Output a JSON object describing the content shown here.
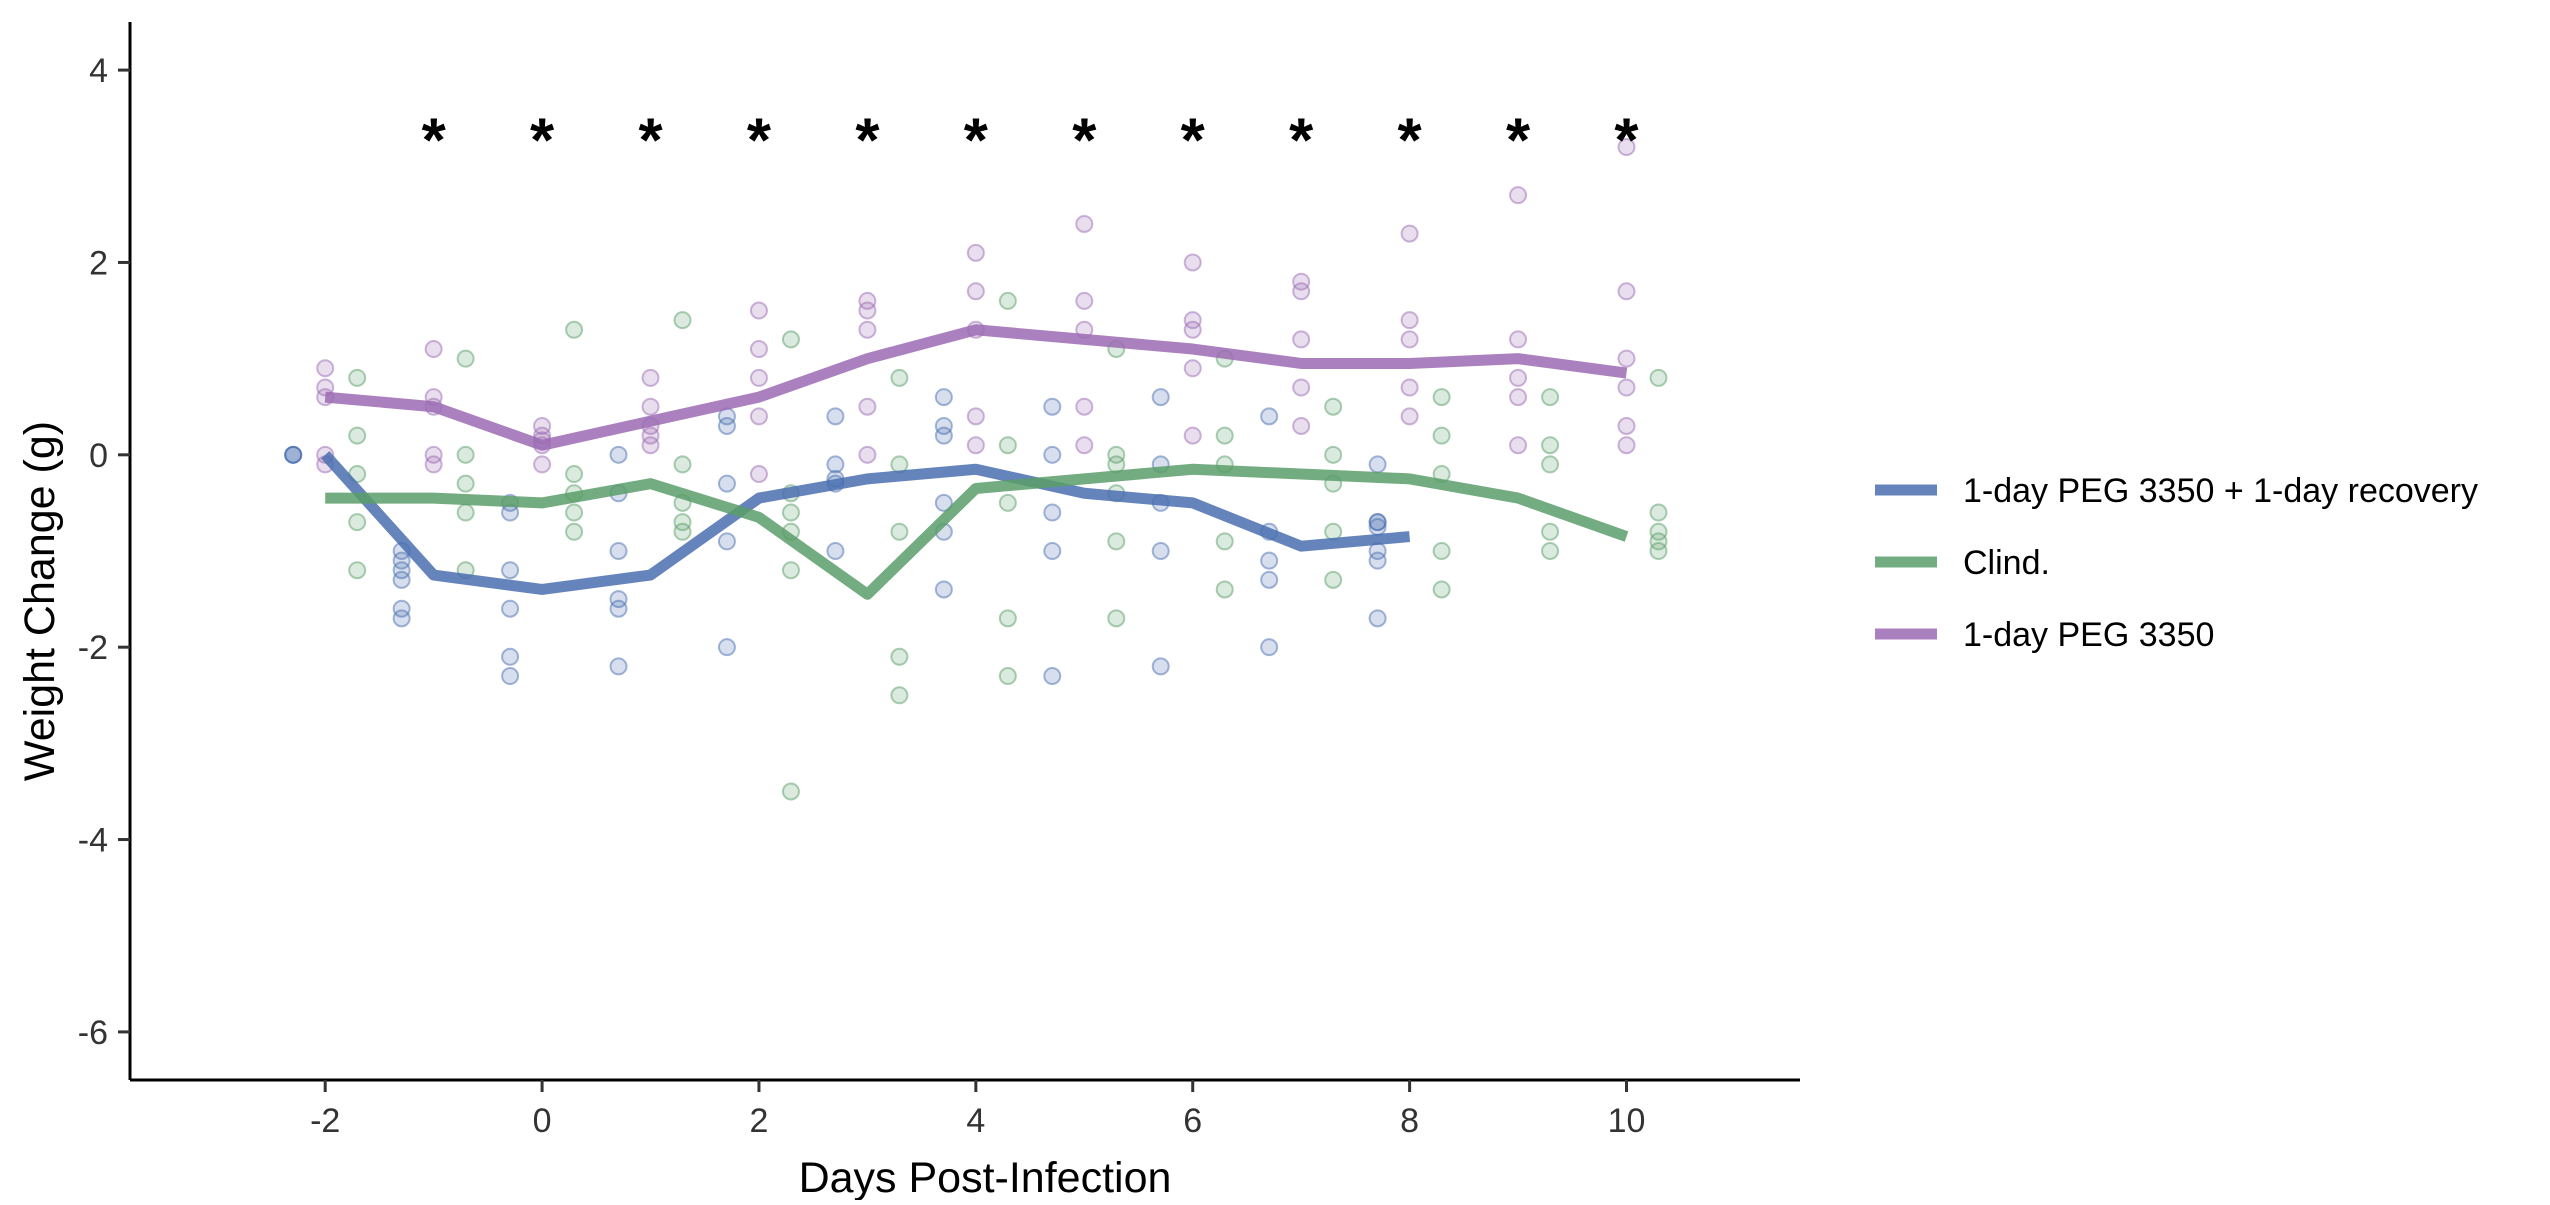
{
  "chart_data": {
    "type": "line",
    "title": "",
    "xlabel": "Days Post-Infection",
    "ylabel": "Weight Change (g)",
    "xlim": [
      -3.8,
      11.6
    ],
    "ylim": [
      -6.5,
      4.5
    ],
    "x_ticks": [
      "-2",
      "0",
      "2",
      "4",
      "6",
      "8",
      "10"
    ],
    "y_ticks": [
      "4",
      "2",
      "0",
      "-2",
      "-4",
      "-6"
    ],
    "grid": false,
    "legend_position": "right",
    "significance_marker": "*",
    "significance_y": 3.3,
    "significance_days": [
      -1,
      0,
      1,
      2,
      3,
      4,
      5,
      6,
      7,
      8,
      9,
      10
    ],
    "series": [
      {
        "name": "1-day PEG 3350 + 1-day recovery",
        "color": "#4a6fb0",
        "mean_x": [
          -2,
          -1,
          0,
          1,
          2,
          3,
          4,
          5,
          6,
          7,
          8
        ],
        "mean_y": [
          0.0,
          -1.25,
          -1.4,
          -1.25,
          -0.45,
          -0.25,
          -0.15,
          -0.4,
          -0.5,
          -0.95,
          -0.85
        ],
        "points_x": [
          -2,
          -2,
          -2,
          -1,
          -1,
          -1,
          -1,
          -1,
          -1,
          0,
          0,
          0,
          0,
          0,
          0,
          1,
          1,
          1,
          1,
          1,
          1,
          2,
          2,
          2,
          2,
          2,
          3,
          3,
          3,
          3,
          3,
          4,
          4,
          4,
          4,
          4,
          4,
          5,
          5,
          5,
          5,
          5,
          6,
          6,
          6,
          6,
          6,
          7,
          7,
          7,
          7,
          7,
          8,
          8,
          8,
          8,
          8,
          8,
          8
        ],
        "points_y": [
          0,
          0,
          0,
          -1.0,
          -1.1,
          -1.2,
          -1.3,
          -1.6,
          -1.7,
          -0.5,
          -0.6,
          -1.2,
          -1.6,
          -2.1,
          -2.3,
          0.0,
          -0.4,
          -1.0,
          -1.5,
          -1.6,
          -2.2,
          0.4,
          0.3,
          -0.3,
          -0.9,
          -2.0,
          0.4,
          -0.1,
          -0.3,
          -1.0,
          -0.25,
          0.6,
          0.3,
          0.2,
          -0.5,
          -0.8,
          -1.4,
          0.5,
          0.0,
          -0.6,
          -1.0,
          -2.3,
          0.6,
          -0.1,
          -0.5,
          -1.0,
          -2.2,
          0.4,
          -0.8,
          -1.1,
          -1.3,
          -2.0,
          -0.1,
          -0.7,
          -0.7,
          -0.75,
          -1.0,
          -1.1,
          -1.7
        ]
      },
      {
        "name": "Clind.",
        "color": "#5a9e6a",
        "mean_x": [
          -2,
          -1,
          0,
          1,
          2,
          3,
          4,
          5,
          6,
          7,
          8,
          9,
          10
        ],
        "mean_y": [
          -0.45,
          -0.45,
          -0.5,
          -0.3,
          -0.65,
          -1.45,
          -0.35,
          -0.25,
          -0.15,
          -0.2,
          -0.25,
          -0.45,
          -0.85
        ],
        "points_x": [
          -2,
          -2,
          -2,
          -2,
          -2,
          -1,
          -1,
          -1,
          -1,
          -1,
          0,
          0,
          0,
          0,
          0,
          1,
          1,
          1,
          1,
          1,
          2,
          2,
          2,
          2,
          2,
          2,
          3,
          3,
          3,
          3,
          3,
          4,
          4,
          4,
          4,
          4,
          5,
          5,
          5,
          5,
          5,
          5,
          6,
          6,
          6,
          6,
          6,
          7,
          7,
          7,
          7,
          7,
          8,
          8,
          8,
          8,
          8,
          9,
          9,
          9,
          9,
          9,
          10,
          10,
          10,
          10,
          10
        ],
        "points_y": [
          0.8,
          0.2,
          -0.2,
          -0.7,
          -1.2,
          1.0,
          0.0,
          -0.3,
          -0.6,
          -1.2,
          1.3,
          -0.2,
          -0.4,
          -0.6,
          -0.8,
          1.4,
          -0.1,
          -0.5,
          -0.7,
          -0.8,
          1.2,
          -0.4,
          -0.6,
          -0.8,
          -1.2,
          -3.5,
          0.8,
          -0.1,
          -0.8,
          -2.1,
          -2.5,
          1.6,
          0.1,
          -0.5,
          -1.7,
          -2.3,
          1.1,
          0.0,
          -0.1,
          -0.4,
          -0.9,
          -1.7,
          1.0,
          0.2,
          -0.1,
          -0.9,
          -1.4,
          0.5,
          0.0,
          -0.3,
          -0.8,
          -1.3,
          0.6,
          0.2,
          -0.2,
          -1.0,
          -1.4,
          0.6,
          0.1,
          -0.1,
          -0.8,
          -1.0,
          0.8,
          -0.6,
          -0.8,
          -0.9,
          -1.0
        ]
      },
      {
        "name": "1-day PEG 3350",
        "color": "#9b6bb3",
        "mean_x": [
          -2,
          -1,
          0,
          1,
          2,
          3,
          4,
          5,
          6,
          7,
          8,
          9,
          10
        ],
        "mean_y": [
          0.6,
          0.5,
          0.1,
          0.35,
          0.6,
          1.0,
          1.3,
          1.2,
          1.1,
          0.95,
          0.95,
          1.0,
          0.85
        ],
        "points_x": [
          -2,
          -2,
          -2,
          -2,
          -2,
          -1,
          -1,
          -1,
          -1,
          -1,
          0,
          0,
          0,
          0,
          0,
          1,
          1,
          1,
          1,
          1,
          2,
          2,
          2,
          2,
          2,
          3,
          3,
          3,
          3,
          3,
          4,
          4,
          4,
          4,
          4,
          5,
          5,
          5,
          5,
          5,
          6,
          6,
          6,
          6,
          6,
          7,
          7,
          7,
          7,
          7,
          8,
          8,
          8,
          8,
          8,
          9,
          9,
          9,
          9,
          9,
          10,
          10,
          10,
          10,
          10,
          10
        ],
        "points_y": [
          0.9,
          0.7,
          0.6,
          0.0,
          -0.1,
          1.1,
          0.6,
          0.5,
          0.0,
          -0.1,
          0.3,
          0.2,
          0.15,
          0.1,
          -0.1,
          0.8,
          0.5,
          0.2,
          0.1,
          0.3,
          1.5,
          1.1,
          0.8,
          0.4,
          -0.2,
          1.6,
          1.5,
          1.3,
          0.5,
          0.0,
          2.1,
          1.7,
          1.3,
          0.4,
          0.1,
          2.4,
          1.6,
          1.3,
          0.5,
          0.1,
          2.0,
          1.4,
          1.3,
          0.9,
          0.2,
          1.8,
          1.7,
          1.2,
          0.7,
          0.3,
          2.3,
          1.4,
          1.2,
          0.7,
          0.4,
          2.7,
          1.2,
          0.8,
          0.6,
          0.1,
          3.2,
          1.7,
          1.0,
          0.7,
          0.3,
          0.1
        ]
      }
    ]
  }
}
